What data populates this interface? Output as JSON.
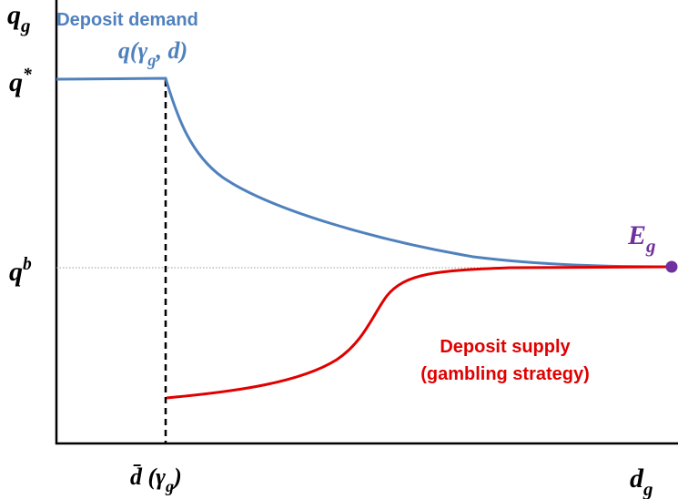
{
  "axes": {
    "y_label": [
      {
        "t": "q"
      },
      {
        "t": "g",
        "pos": "sub"
      }
    ],
    "x_label": [
      {
        "t": "d"
      },
      {
        "t": "g",
        "pos": "sub"
      }
    ]
  },
  "y_marks": {
    "q_star": [
      {
        "t": "q"
      },
      {
        "t": "*",
        "pos": "sup"
      }
    ],
    "q_b": [
      {
        "t": "q"
      },
      {
        "t": "b",
        "pos": "sup"
      }
    ]
  },
  "x_marks": {
    "d_bar": [
      {
        "t": "d̄ (γ"
      },
      {
        "t": "g",
        "pos": "sub"
      },
      {
        "t": ")"
      }
    ]
  },
  "demand": {
    "title": "Deposit demand",
    "formula": [
      {
        "t": "q(γ"
      },
      {
        "t": "g",
        "pos": "sub"
      },
      {
        "t": ", d)"
      }
    ]
  },
  "supply": {
    "title": "Deposit  supply",
    "subtitle": "(gambling strategy)"
  },
  "equilibrium": [
    {
      "t": "E"
    },
    {
      "t": "g",
      "pos": "sub"
    }
  ]
}
